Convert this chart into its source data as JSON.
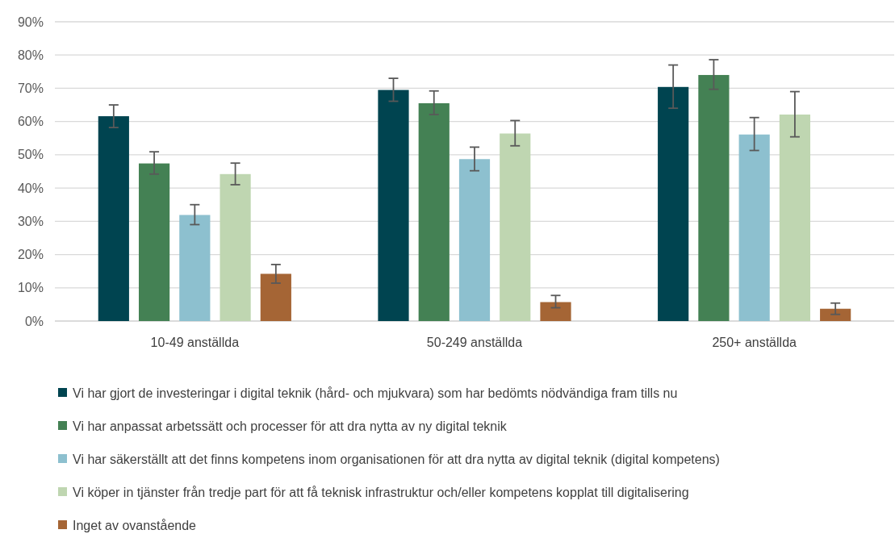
{
  "chart_data": {
    "type": "bar",
    "categories": [
      "10-49 anställda",
      "50-249 anställda",
      "250+ anställda"
    ],
    "series": [
      {
        "name": "Vi har gjort de investeringar i digital teknik (hård- och mjukvara) som har bedömts nödvändiga fram tills nu",
        "color": "#004450",
        "values": [
          61.6,
          69.5,
          70.4
        ],
        "errors": [
          [
            58.2,
            65.0
          ],
          [
            66.1,
            73.0
          ],
          [
            64.0,
            77.0
          ]
        ]
      },
      {
        "name": "Vi har anpassat arbetssätt och processer för att dra nytta av ny digital teknik",
        "color": "#448154",
        "values": [
          47.4,
          65.5,
          74.0
        ],
        "errors": [
          [
            44.2,
            50.9
          ],
          [
            62.1,
            69.2
          ],
          [
            69.7,
            78.6
          ]
        ]
      },
      {
        "name": "Vi har säkerställt att det finns kompetens inom organisationen för att dra nytta av digital teknik (digital kompetens)",
        "color": "#8dc0cf",
        "values": [
          31.9,
          48.7,
          56.1
        ],
        "errors": [
          [
            29.0,
            35.0
          ],
          [
            45.2,
            52.3
          ],
          [
            51.3,
            61.2
          ]
        ]
      },
      {
        "name": "Vi köper in tjänster från tredje part för att få teknisk infrastruktur och/eller kompetens kopplat till digitalisering",
        "color": "#bfd6b1",
        "values": [
          44.2,
          56.4,
          62.1
        ],
        "errors": [
          [
            41.0,
            47.5
          ],
          [
            52.7,
            60.3
          ],
          [
            55.4,
            69.0
          ]
        ]
      },
      {
        "name": "Inget av ovanstående",
        "color": "#a56535",
        "values": [
          14.2,
          5.7,
          3.7
        ],
        "errors": [
          [
            11.4,
            17.0
          ],
          [
            4.0,
            7.7
          ],
          [
            2.0,
            5.4
          ]
        ]
      }
    ],
    "ylim": [
      0,
      90
    ],
    "yticks": [
      {
        "value": 0,
        "label": "0%"
      },
      {
        "value": 10,
        "label": "10%"
      },
      {
        "value": 20,
        "label": "20%"
      },
      {
        "value": 30,
        "label": "30%"
      },
      {
        "value": 40,
        "label": "40%"
      },
      {
        "value": 50,
        "label": "50%"
      },
      {
        "value": 60,
        "label": "60%"
      },
      {
        "value": 70,
        "label": "70%"
      },
      {
        "value": 80,
        "label": "80%"
      },
      {
        "value": 90,
        "label": "90%"
      }
    ],
    "grid": "y",
    "legend": "bottom"
  }
}
